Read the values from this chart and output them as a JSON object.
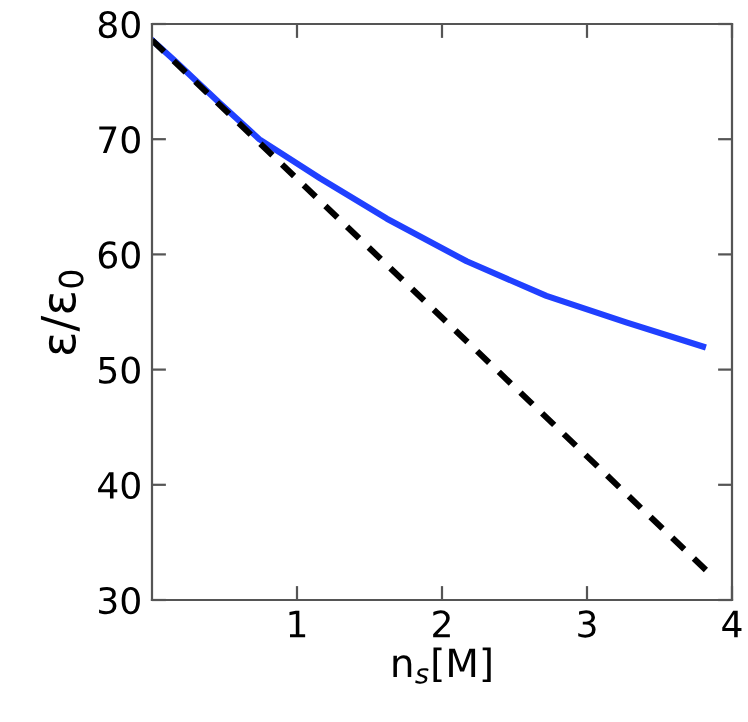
{
  "chart_data": {
    "type": "line",
    "xlabel": "n$_{s}$[M]",
    "ylabel": "ε/ε$_{0}$",
    "xlim": [
      0,
      4
    ],
    "ylim": [
      30,
      80
    ],
    "xticks": [
      1,
      2,
      3,
      4
    ],
    "yticks": [
      30,
      40,
      50,
      60,
      70,
      80
    ],
    "grid": false,
    "legend": false,
    "series": [
      {
        "color": "#2040ff",
        "line_style": "solid",
        "x": [
          0,
          0.15,
          0.47,
          0.74,
          1.16,
          1.62,
          2.17,
          2.72,
          3.27,
          3.8
        ],
        "values": [
          78.6,
          76.9,
          73.1,
          70.0,
          66.6,
          63.1,
          59.4,
          56.4,
          54.1,
          52.0
        ]
      },
      {
        "color": "#000000",
        "line_style": "dashed",
        "x": [
          0,
          3.82
        ],
        "values": [
          78.6,
          32.6
        ]
      }
    ]
  }
}
